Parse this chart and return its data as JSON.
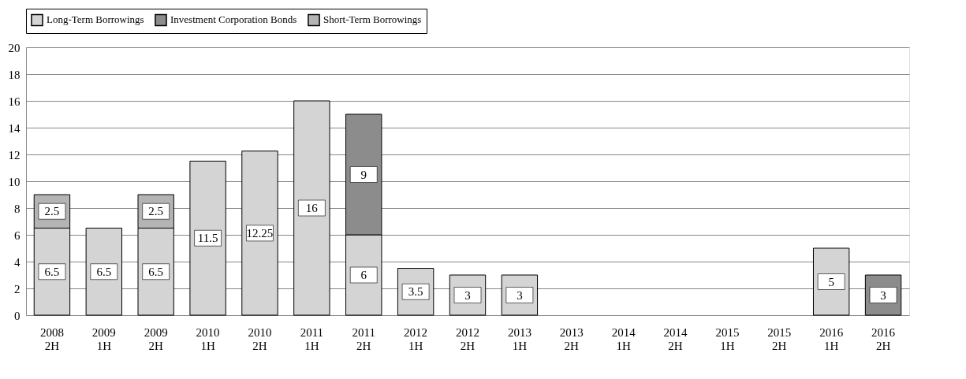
{
  "chart_data": {
    "type": "bar",
    "stacked": true,
    "categories": [
      "2008\n2H",
      "2009\n1H",
      "2009\n2H",
      "2010\n1H",
      "2010\n2H",
      "2011\n1H",
      "2011\n2H",
      "2012\n1H",
      "2012\n2H",
      "2013\n1H",
      "2013\n2H",
      "2014\n1H",
      "2014\n2H",
      "2015\n1H",
      "2015\n2H",
      "2016\n1H",
      "2016\n2H"
    ],
    "series": [
      {
        "name": "Long-Term Borrowings",
        "color": "#d4d4d4",
        "values": [
          6.5,
          6.5,
          6.5,
          11.5,
          12.25,
          16,
          6,
          3.5,
          3,
          3,
          null,
          null,
          null,
          null,
          null,
          5,
          null
        ]
      },
      {
        "name": "Investment Corporation Bonds",
        "color": "#8c8c8c",
        "values": [
          null,
          null,
          null,
          null,
          null,
          null,
          9,
          null,
          null,
          null,
          null,
          null,
          null,
          null,
          null,
          null,
          3
        ]
      },
      {
        "name": "Short-Term Borrowings",
        "color": "#b4b4b4",
        "values": [
          2.5,
          null,
          2.5,
          null,
          null,
          null,
          null,
          null,
          null,
          null,
          null,
          null,
          null,
          null,
          null,
          null,
          null
        ]
      }
    ],
    "ylim": [
      0,
      20
    ],
    "yticks": [
      0,
      2,
      4,
      6,
      8,
      10,
      12,
      14,
      16,
      18,
      20
    ],
    "grid": "y",
    "legend": "top",
    "data_labels": true
  }
}
